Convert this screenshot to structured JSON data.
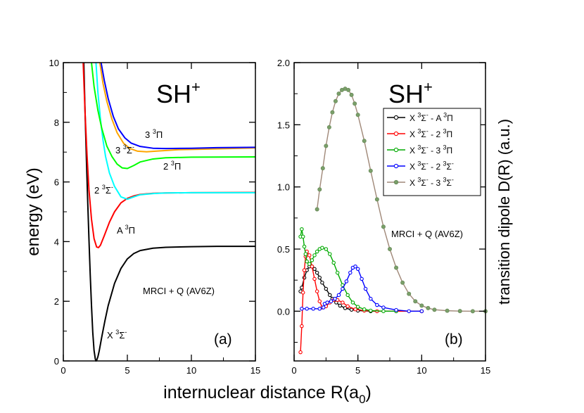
{
  "figure": {
    "xlabel_main": "internuclear distance R(a",
    "xlabel_sub": "0",
    "xlabel_close": ")"
  },
  "chart_data": [
    {
      "id": "a",
      "type": "line",
      "panel_label": "(a)",
      "title_main": "SH",
      "title_sup": "+",
      "ylabel": "energy (eV)",
      "method_label": "MRCI + Q (AV6Z)",
      "xlim": [
        0,
        15
      ],
      "ylim": [
        0,
        10
      ],
      "xticks": [
        0,
        5,
        10,
        15
      ],
      "yticks": [
        0,
        2,
        4,
        6,
        8,
        10
      ],
      "series": [
        {
          "name": "X3Sigma-",
          "color": "#000000",
          "label": {
            "base": "X ",
            "sup": "3",
            "sym": "Σ",
            "sup2": "-"
          },
          "points": [
            [
              1.6,
              10
            ],
            [
              1.7,
              8.3
            ],
            [
              1.8,
              6.8
            ],
            [
              1.9,
              5.4
            ],
            [
              2.0,
              4.1
            ],
            [
              2.1,
              2.9
            ],
            [
              2.2,
              1.85
            ],
            [
              2.3,
              0.95
            ],
            [
              2.4,
              0.35
            ],
            [
              2.5,
              0.06
            ],
            [
              2.55,
              0.0
            ],
            [
              2.6,
              0.02
            ],
            [
              2.7,
              0.14
            ],
            [
              2.8,
              0.33
            ],
            [
              3.0,
              0.8
            ],
            [
              3.25,
              1.35
            ],
            [
              3.5,
              1.85
            ],
            [
              4.0,
              2.6
            ],
            [
              4.5,
              3.1
            ],
            [
              5.0,
              3.42
            ],
            [
              5.5,
              3.6
            ],
            [
              6.0,
              3.7
            ],
            [
              7.0,
              3.78
            ],
            [
              8.0,
              3.81
            ],
            [
              10.0,
              3.83
            ],
            [
              12.0,
              3.84
            ],
            [
              15.0,
              3.84
            ]
          ]
        },
        {
          "name": "A3Pi",
          "color": "#ff0000",
          "label": {
            "base": "A ",
            "sup": "3",
            "sym": "Π",
            "sup2": ""
          },
          "points": [
            [
              1.55,
              10
            ],
            [
              1.7,
              8.3
            ],
            [
              1.85,
              6.9
            ],
            [
              2.0,
              5.75
            ],
            [
              2.2,
              4.75
            ],
            [
              2.4,
              4.1
            ],
            [
              2.6,
              3.82
            ],
            [
              2.75,
              3.8
            ],
            [
              2.9,
              3.88
            ],
            [
              3.2,
              4.2
            ],
            [
              3.6,
              4.65
            ],
            [
              4.0,
              5.0
            ],
            [
              4.5,
              5.3
            ],
            [
              5.0,
              5.45
            ],
            [
              5.5,
              5.53
            ],
            [
              6.0,
              5.58
            ],
            [
              7.0,
              5.62
            ],
            [
              8.0,
              5.63
            ],
            [
              10.0,
              5.64
            ],
            [
              15.0,
              5.65
            ]
          ]
        },
        {
          "name": "2 3Sigma-",
          "color": "#00ffff",
          "label": {
            "base": "2 ",
            "sup": "3",
            "sym": "Σ",
            "sup2": "-"
          },
          "points": [
            [
              2.55,
              10
            ],
            [
              2.7,
              9.0
            ],
            [
              2.9,
              8.1
            ],
            [
              3.1,
              7.4
            ],
            [
              3.3,
              6.85
            ],
            [
              3.6,
              6.3
            ],
            [
              4.0,
              5.85
            ],
            [
              4.5,
              5.5
            ],
            [
              5.0,
              5.42
            ],
            [
              5.5,
              5.5
            ],
            [
              6.0,
              5.57
            ],
            [
              7.0,
              5.61
            ],
            [
              8.0,
              5.63
            ],
            [
              10.0,
              5.64
            ],
            [
              15.0,
              5.64
            ]
          ]
        },
        {
          "name": "2 3Pi",
          "color": "#00ff00",
          "label": {
            "base": "2 ",
            "sup": "3",
            "sym": "Π",
            "sup2": ""
          },
          "points": [
            [
              2.2,
              10
            ],
            [
              2.4,
              9.2
            ],
            [
              2.7,
              8.4
            ],
            [
              3.0,
              7.8
            ],
            [
              3.4,
              7.2
            ],
            [
              3.8,
              6.85
            ],
            [
              4.2,
              6.6
            ],
            [
              4.6,
              6.47
            ],
            [
              5.0,
              6.45
            ],
            [
              5.5,
              6.55
            ],
            [
              6.0,
              6.67
            ],
            [
              7.0,
              6.77
            ],
            [
              8.0,
              6.81
            ],
            [
              10.0,
              6.83
            ],
            [
              15.0,
              6.84
            ]
          ]
        },
        {
          "name": "3 3Sigma-",
          "color": "#ffa500",
          "label": {
            "base": "3 ",
            "sup": "3",
            "sym": "Σ",
            "sup2": "-"
          },
          "points": [
            [
              2.85,
              10
            ],
            [
              3.1,
              9.3
            ],
            [
              3.4,
              8.7
            ],
            [
              3.8,
              8.1
            ],
            [
              4.2,
              7.65
            ],
            [
              4.7,
              7.3
            ],
            [
              5.2,
              7.12
            ],
            [
              5.8,
              7.03
            ],
            [
              6.5,
              7.01
            ],
            [
              7.5,
              7.04
            ],
            [
              9.0,
              7.08
            ],
            [
              11.0,
              7.1
            ],
            [
              13.0,
              7.12
            ],
            [
              15.0,
              7.14
            ]
          ]
        },
        {
          "name": "3 3Pi",
          "color": "#0000ff",
          "label": {
            "base": "3 ",
            "sup": "3",
            "sym": "Π",
            "sup2": ""
          },
          "points": [
            [
              2.95,
              10
            ],
            [
              3.2,
              9.4
            ],
            [
              3.5,
              8.8
            ],
            [
              3.9,
              8.2
            ],
            [
              4.3,
              7.78
            ],
            [
              4.8,
              7.48
            ],
            [
              5.3,
              7.3
            ],
            [
              6.0,
              7.19
            ],
            [
              7.0,
              7.13
            ],
            [
              8.0,
              7.12
            ],
            [
              10.0,
              7.13
            ],
            [
              12.0,
              7.15
            ],
            [
              15.0,
              7.16
            ]
          ]
        }
      ]
    },
    {
      "id": "b",
      "type": "line",
      "panel_label": "(b)",
      "title_main": "SH",
      "title_sup": "+",
      "ylabel": "transition  dipole D(R) (a.u.)",
      "method_label": "MRCI + Q (AV6Z)",
      "xlim": [
        0,
        15
      ],
      "ylim": [
        -0.4,
        2.0
      ],
      "xticks": [
        0,
        5,
        10,
        15
      ],
      "yticks": [
        0.0,
        0.5,
        1.0,
        1.5,
        2.0
      ],
      "legend_position": "top-right",
      "series": [
        {
          "name": "X 3Sigma- - A 3Pi",
          "color": "#000000",
          "marker": "circle-open",
          "legend": {
            "a": "X ",
            "s1": "3",
            "g1": "Σ",
            "s2": "-",
            "b": " - A ",
            "s3": "3",
            "g2": "Π",
            "s4": ""
          },
          "points": [
            [
              0.5,
              0.16
            ],
            [
              0.6,
              0.19
            ],
            [
              0.8,
              0.27
            ],
            [
              1.0,
              0.33
            ],
            [
              1.2,
              0.36
            ],
            [
              1.4,
              0.36
            ],
            [
              1.6,
              0.34
            ],
            [
              1.8,
              0.31
            ],
            [
              2.0,
              0.27
            ],
            [
              2.2,
              0.23
            ],
            [
              2.5,
              0.18
            ],
            [
              2.8,
              0.13
            ],
            [
              3.0,
              0.1
            ],
            [
              3.3,
              0.07
            ],
            [
              3.6,
              0.045
            ],
            [
              4.0,
              0.025
            ],
            [
              4.5,
              0.012
            ],
            [
              5.0,
              0.005
            ],
            [
              6.0,
              0.0
            ],
            [
              8.0,
              0.0
            ],
            [
              10.0,
              0.0
            ]
          ]
        },
        {
          "name": "X 3Sigma- - 2 3Pi",
          "color": "#ff0000",
          "marker": "circle-open",
          "legend": {
            "a": "X ",
            "s1": "3",
            "g1": "Σ",
            "s2": "-",
            "b": " - 2 ",
            "s3": "3",
            "g2": "Π",
            "s4": ""
          },
          "points": [
            [
              0.5,
              -0.33
            ],
            [
              0.6,
              -0.12
            ],
            [
              0.7,
              0.15
            ],
            [
              0.8,
              0.33
            ],
            [
              0.9,
              0.44
            ],
            [
              1.0,
              0.48
            ],
            [
              1.2,
              0.45
            ],
            [
              1.4,
              0.36
            ],
            [
              1.6,
              0.26
            ],
            [
              1.8,
              0.16
            ],
            [
              2.0,
              0.08
            ],
            [
              2.2,
              0.03
            ],
            [
              2.5,
              0.04
            ],
            [
              2.8,
              0.07
            ],
            [
              3.1,
              0.09
            ],
            [
              3.4,
              0.09
            ],
            [
              3.8,
              0.07
            ],
            [
              4.2,
              0.04
            ],
            [
              4.8,
              0.015
            ],
            [
              5.5,
              0.005
            ],
            [
              6.5,
              0.0
            ],
            [
              8.0,
              0.0
            ],
            [
              10.0,
              0.0
            ]
          ]
        },
        {
          "name": "X 3Sigma- - 3 3Pi",
          "color": "#00aa00",
          "marker": "circle-open",
          "legend": {
            "a": "X ",
            "s1": "3",
            "g1": "Σ",
            "s2": "-",
            "b": " - 3 ",
            "s3": "3",
            "g2": "Π",
            "s4": ""
          },
          "points": [
            [
              0.5,
              0.6
            ],
            [
              0.6,
              0.66
            ],
            [
              0.7,
              0.6
            ],
            [
              0.8,
              0.52
            ],
            [
              0.9,
              0.46
            ],
            [
              1.0,
              0.4
            ],
            [
              1.2,
              0.38
            ],
            [
              1.4,
              0.41
            ],
            [
              1.6,
              0.45
            ],
            [
              1.8,
              0.48
            ],
            [
              2.0,
              0.5
            ],
            [
              2.2,
              0.51
            ],
            [
              2.5,
              0.5
            ],
            [
              2.8,
              0.46
            ],
            [
              3.1,
              0.39
            ],
            [
              3.4,
              0.31
            ],
            [
              3.8,
              0.21
            ],
            [
              4.2,
              0.13
            ],
            [
              4.6,
              0.07
            ],
            [
              5.0,
              0.035
            ],
            [
              5.5,
              0.015
            ],
            [
              6.0,
              0.005
            ],
            [
              7.0,
              0.0
            ],
            [
              8.0,
              0.0
            ]
          ]
        },
        {
          "name": "X 3Sigma- - 2 3Sigma-",
          "color": "#0000ff",
          "marker": "circle-open",
          "legend": {
            "a": "X ",
            "s1": "3",
            "g1": "Σ",
            "s2": "-",
            "b": " - 2 ",
            "s3": "3",
            "g2": "Σ",
            "s4": "-"
          },
          "points": [
            [
              0.6,
              0.02
            ],
            [
              1.0,
              0.02
            ],
            [
              1.5,
              0.02
            ],
            [
              2.0,
              0.02
            ],
            [
              2.3,
              0.03
            ],
            [
              2.4,
              0.06
            ],
            [
              2.6,
              0.07
            ],
            [
              2.9,
              0.08
            ],
            [
              3.2,
              0.1
            ],
            [
              3.5,
              0.13
            ],
            [
              3.8,
              0.18
            ],
            [
              4.1,
              0.24
            ],
            [
              4.4,
              0.31
            ],
            [
              4.6,
              0.35
            ],
            [
              4.8,
              0.36
            ],
            [
              5.0,
              0.34
            ],
            [
              5.3,
              0.26
            ],
            [
              5.6,
              0.18
            ],
            [
              6.0,
              0.1
            ],
            [
              6.5,
              0.05
            ],
            [
              7.0,
              0.03
            ],
            [
              8.0,
              0.01
            ],
            [
              9.0,
              0.0
            ],
            [
              10.0,
              0.0
            ]
          ]
        },
        {
          "name": "X 3Sigma- - 3 3Sigma-",
          "color": "#a08878",
          "marker": "dot-gray",
          "legend": {
            "a": "X ",
            "s1": "3",
            "g1": "Σ",
            "s2": "-",
            "b": " - 3 ",
            "s3": "3",
            "g2": "Σ",
            "s4": "-"
          },
          "points": [
            [
              1.8,
              0.82
            ],
            [
              2.0,
              0.98
            ],
            [
              2.25,
              1.15
            ],
            [
              2.5,
              1.33
            ],
            [
              2.75,
              1.48
            ],
            [
              3.0,
              1.6
            ],
            [
              3.25,
              1.69
            ],
            [
              3.5,
              1.75
            ],
            [
              3.75,
              1.78
            ],
            [
              4.0,
              1.79
            ],
            [
              4.25,
              1.78
            ],
            [
              4.5,
              1.74
            ],
            [
              4.75,
              1.67
            ],
            [
              5.0,
              1.58
            ],
            [
              5.5,
              1.37
            ],
            [
              6.0,
              1.13
            ],
            [
              6.5,
              0.9
            ],
            [
              7.0,
              0.68
            ],
            [
              7.5,
              0.5
            ],
            [
              8.0,
              0.35
            ],
            [
              8.5,
              0.23
            ],
            [
              9.0,
              0.14
            ],
            [
              9.5,
              0.08
            ],
            [
              10.0,
              0.045
            ],
            [
              10.5,
              0.025
            ],
            [
              11.0,
              0.012
            ],
            [
              12.0,
              0.004
            ],
            [
              13.0,
              0.001
            ],
            [
              14.0,
              0.0
            ],
            [
              15.0,
              0.0
            ]
          ]
        }
      ]
    }
  ]
}
